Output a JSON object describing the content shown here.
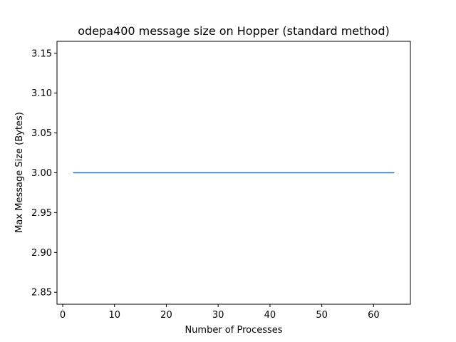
{
  "chart_data": {
    "type": "line",
    "title": "odepa400 message size on Hopper (standard method)",
    "xlabel": "Number of Processes",
    "ylabel": "Max Message Size (Bytes)",
    "xlim": [
      -1.1,
      67.1
    ],
    "ylim": [
      2.835,
      3.165
    ],
    "xticks": [
      0,
      10,
      20,
      30,
      40,
      50,
      60
    ],
    "xtick_labels": [
      "0",
      "10",
      "20",
      "30",
      "40",
      "50",
      "60"
    ],
    "yticks": [
      2.85,
      2.9,
      2.95,
      3.0,
      3.05,
      3.1,
      3.15
    ],
    "ytick_labels": [
      "2.85",
      "2.90",
      "2.95",
      "3.00",
      "3.05",
      "3.10",
      "3.15"
    ],
    "grid": false,
    "series": [
      {
        "color": "#1f77b4",
        "x": [
          2,
          4,
          8,
          16,
          32,
          64
        ],
        "y": [
          3,
          3,
          3,
          3,
          3,
          3
        ]
      }
    ]
  }
}
